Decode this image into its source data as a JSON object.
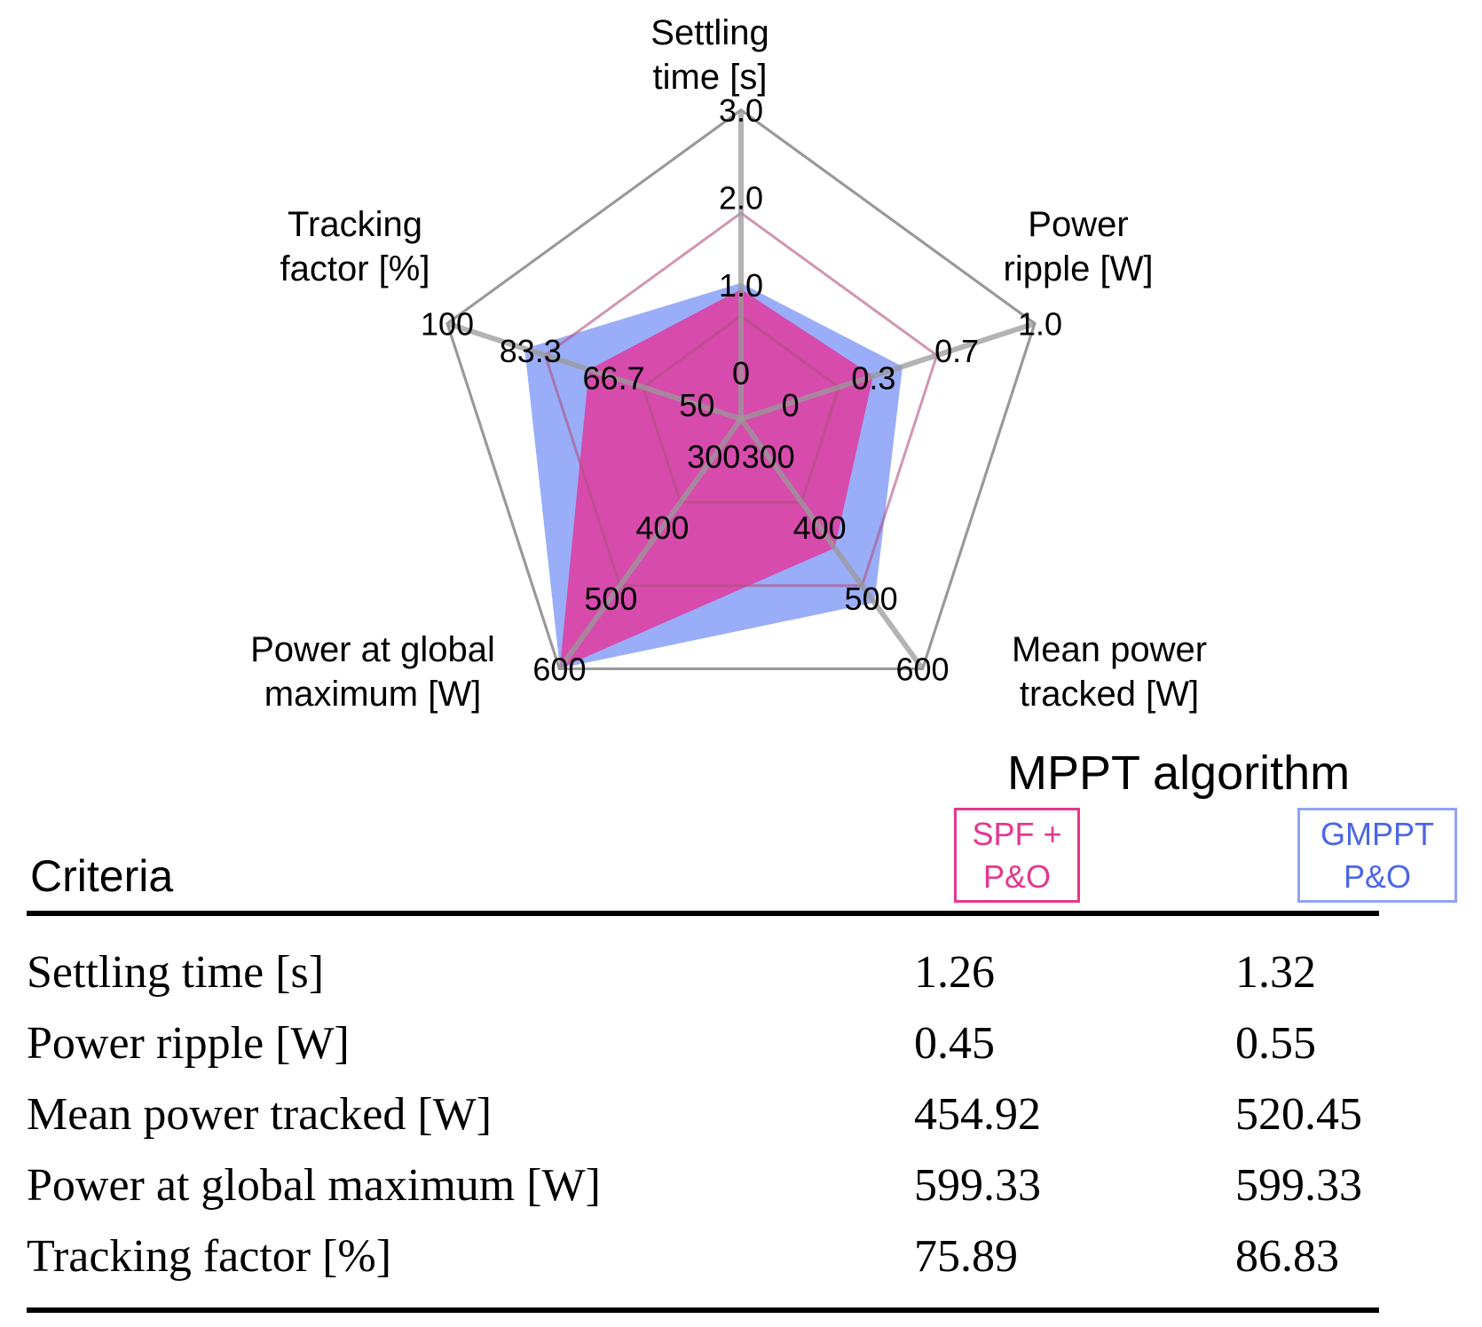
{
  "chart_data": {
    "type": "radar",
    "axes": [
      {
        "label_lines": [
          "Settling",
          "time [s]"
        ],
        "ticks": [
          "0",
          "1.0",
          "2.0",
          "3.0"
        ],
        "range": [
          0,
          3.0
        ]
      },
      {
        "label_lines": [
          "Power",
          "ripple [W]"
        ],
        "ticks": [
          "0",
          "0.3",
          "0.7",
          "1.0"
        ],
        "range": [
          0,
          1.0
        ]
      },
      {
        "label_lines": [
          "Mean power",
          "tracked [W]"
        ],
        "ticks": [
          "300",
          "400",
          "500",
          "600"
        ],
        "range": [
          300,
          600
        ]
      },
      {
        "label_lines": [
          "Power at global",
          "maximum [W]"
        ],
        "ticks": [
          "300",
          "400",
          "500",
          "600"
        ],
        "range": [
          300,
          600
        ]
      },
      {
        "label_lines": [
          "Tracking",
          "factor [%]"
        ],
        "ticks": [
          "50",
          "66.7",
          "83.3",
          "100"
        ],
        "range": [
          50,
          100
        ]
      }
    ],
    "series": [
      {
        "name": "GMPPT P&O",
        "values": [
          1.32,
          0.55,
          520.45,
          599.33,
          86.83
        ],
        "color": "#8fa4f7"
      },
      {
        "name": "SPF + P&O",
        "values": [
          1.26,
          0.45,
          454.92,
          599.33,
          75.89
        ],
        "color": "#d946a8"
      }
    ]
  },
  "legend": {
    "title": "MPPT algorithm",
    "spf": {
      "line1": "SPF +",
      "line2": "P&O",
      "color": "#e5368f"
    },
    "gmppt": {
      "line1": "GMPPT",
      "line2": "P&O",
      "color": "#4a66e8"
    }
  },
  "table": {
    "header": "Criteria",
    "rows": [
      {
        "criterion": "Settling time [s]",
        "spf": "1.26",
        "gmppt": "1.32"
      },
      {
        "criterion": "Power ripple [W]",
        "spf": "0.45",
        "gmppt": "0.55"
      },
      {
        "criterion": "Mean power tracked [W]",
        "spf": "454.92",
        "gmppt": "520.45"
      },
      {
        "criterion": "Power at global maximum [W]",
        "spf": "599.33",
        "gmppt": "599.33"
      },
      {
        "criterion": "Tracking factor [%]",
        "spf": "75.89",
        "gmppt": "86.83"
      }
    ]
  }
}
